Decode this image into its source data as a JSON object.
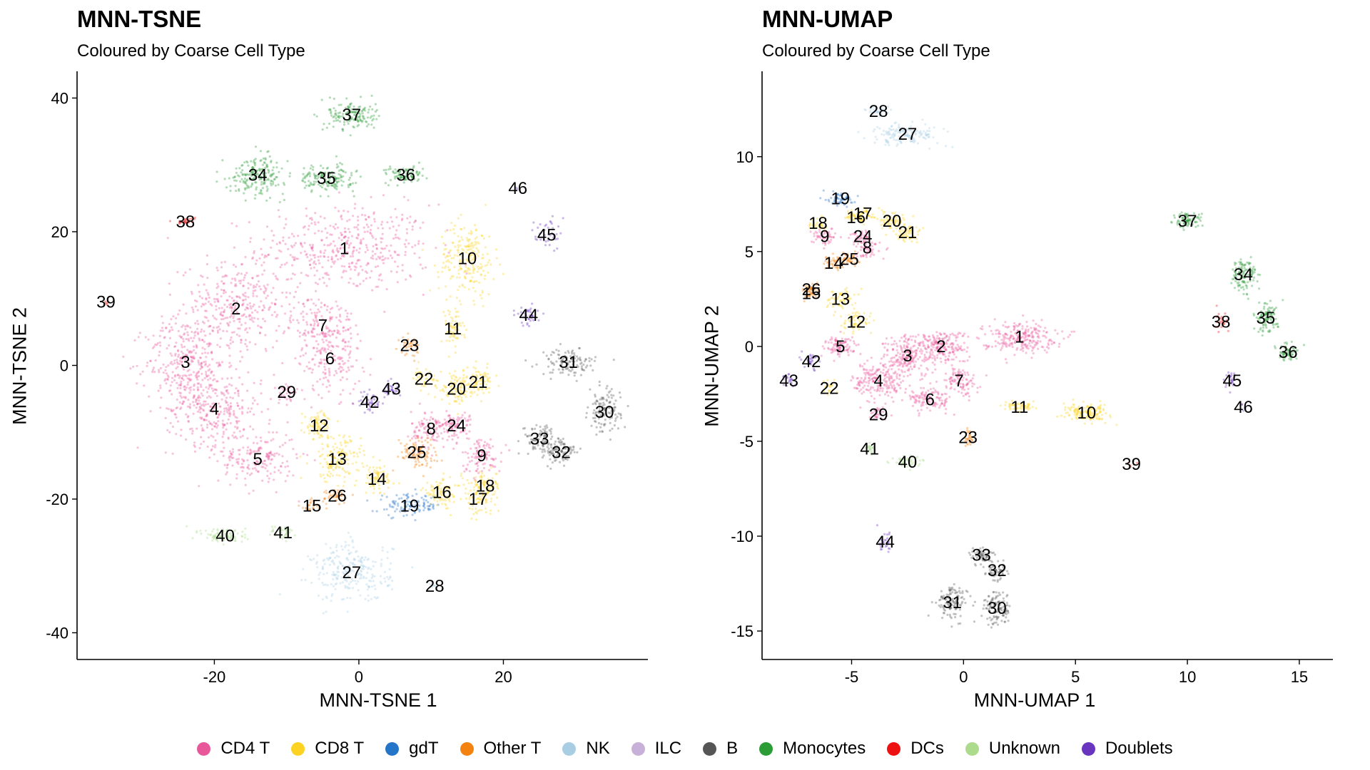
{
  "legend": [
    {
      "label": "CD4 T",
      "color": "#E7579A"
    },
    {
      "label": "CD8 T",
      "color": "#FDD323"
    },
    {
      "label": "gdT",
      "color": "#2474C8"
    },
    {
      "label": "Other T",
      "color": "#F3820E"
    },
    {
      "label": "NK",
      "color": "#A9CEE4"
    },
    {
      "label": "ILC",
      "color": "#C8B1D8"
    },
    {
      "label": "B",
      "color": "#555555"
    },
    {
      "label": "Monocytes",
      "color": "#2C9C37"
    },
    {
      "label": "DCs",
      "color": "#EE1111"
    },
    {
      "label": "Unknown",
      "color": "#ADDB8E"
    },
    {
      "label": "Doublets",
      "color": "#6A35BE"
    }
  ],
  "chart_data": [
    {
      "type": "scatter",
      "title": "MNN-TSNE",
      "subtitle": "Coloured by Coarse Cell Type",
      "xlabel": "MNN-TSNE 1",
      "ylabel": "MNN-TSNE 2",
      "xlim": [
        -39,
        40
      ],
      "ylim": [
        -44,
        44
      ],
      "xticks": [
        -20,
        0,
        20
      ],
      "yticks": [
        -40,
        -20,
        0,
        20,
        40
      ],
      "grid": false,
      "legend_position": "bottom",
      "clusters": [
        {
          "id": "1",
          "type": "CD4 T",
          "x": -2,
          "y": 17.5,
          "sx": 11,
          "sy": 6,
          "n": 450
        },
        {
          "id": "2",
          "type": "CD4 T",
          "x": -17,
          "y": 8.5,
          "sx": 7,
          "sy": 6,
          "n": 350
        },
        {
          "id": "3",
          "type": "CD4 T",
          "x": -24,
          "y": 0.5,
          "sx": 5,
          "sy": 6,
          "n": 300
        },
        {
          "id": "4",
          "type": "CD4 T",
          "x": -20,
          "y": -6.5,
          "sx": 6,
          "sy": 5,
          "n": 300
        },
        {
          "id": "5",
          "type": "CD4 T",
          "x": -14,
          "y": -14,
          "sx": 5,
          "sy": 4,
          "n": 180
        },
        {
          "id": "6",
          "type": "CD4 T",
          "x": -4,
          "y": 1,
          "sx": 4,
          "sy": 5,
          "n": 160
        },
        {
          "id": "7",
          "type": "CD4 T",
          "x": -5,
          "y": 6,
          "sx": 4,
          "sy": 4,
          "n": 140
        },
        {
          "id": "8",
          "type": "CD4 T",
          "x": 10,
          "y": -9.5,
          "sx": 2.5,
          "sy": 2.5,
          "n": 110
        },
        {
          "id": "9",
          "type": "CD4 T",
          "x": 17,
          "y": -13.5,
          "sx": 2.5,
          "sy": 2.5,
          "n": 100
        },
        {
          "id": "10",
          "type": "CD8 T",
          "x": 15,
          "y": 16,
          "sx": 3.5,
          "sy": 5,
          "n": 220
        },
        {
          "id": "11",
          "type": "CD8 T",
          "x": 13,
          "y": 5.5,
          "sx": 1.5,
          "sy": 3,
          "n": 70
        },
        {
          "id": "12",
          "type": "CD8 T",
          "x": -5.5,
          "y": -9,
          "sx": 2,
          "sy": 2,
          "n": 80
        },
        {
          "id": "13",
          "type": "CD8 T",
          "x": -3,
          "y": -14,
          "sx": 3,
          "sy": 3,
          "n": 150
        },
        {
          "id": "14",
          "type": "CD8 T",
          "x": 2.5,
          "y": -17,
          "sx": 2.5,
          "sy": 2,
          "n": 80
        },
        {
          "id": "15",
          "type": "Other T",
          "x": -6.5,
          "y": -21,
          "sx": 1.5,
          "sy": 1,
          "n": 25
        },
        {
          "id": "16",
          "type": "CD8 T",
          "x": 11.5,
          "y": -19,
          "sx": 2.5,
          "sy": 2,
          "n": 90
        },
        {
          "id": "17",
          "type": "CD8 T",
          "x": 16.5,
          "y": -20,
          "sx": 2,
          "sy": 2,
          "n": 70
        },
        {
          "id": "18",
          "type": "CD8 T",
          "x": 17.5,
          "y": -18,
          "sx": 2,
          "sy": 2,
          "n": 70
        },
        {
          "id": "19",
          "type": "gdT",
          "x": 7,
          "y": -21,
          "sx": 4,
          "sy": 1.5,
          "n": 110
        },
        {
          "id": "20",
          "type": "CD8 T",
          "x": 13.5,
          "y": -3.5,
          "sx": 2,
          "sy": 2,
          "n": 90
        },
        {
          "id": "21",
          "type": "CD8 T",
          "x": 16.5,
          "y": -2.5,
          "sx": 2,
          "sy": 2,
          "n": 90
        },
        {
          "id": "22",
          "type": "CD8 T",
          "x": 9,
          "y": -2,
          "sx": 1.5,
          "sy": 1.5,
          "n": 40
        },
        {
          "id": "23",
          "type": "Other T",
          "x": 7,
          "y": 3,
          "sx": 1.2,
          "sy": 1.2,
          "n": 40
        },
        {
          "id": "24",
          "type": "CD4 T",
          "x": 13.5,
          "y": -9,
          "sx": 2,
          "sy": 2,
          "n": 80
        },
        {
          "id": "25",
          "type": "Other T",
          "x": 8,
          "y": -13,
          "sx": 2.5,
          "sy": 2,
          "n": 100
        },
        {
          "id": "26",
          "type": "Other T",
          "x": -3,
          "y": -19.5,
          "sx": 1.5,
          "sy": 1,
          "n": 40
        },
        {
          "id": "27",
          "type": "NK",
          "x": -1,
          "y": -31,
          "sx": 5,
          "sy": 4,
          "n": 250
        },
        {
          "id": "28",
          "type": "NK",
          "x": 10.5,
          "y": -33,
          "sx": 0.8,
          "sy": 0.8,
          "n": 5
        },
        {
          "id": "29",
          "type": "CD4 T",
          "x": -10,
          "y": -4,
          "sx": 1.5,
          "sy": 1.5,
          "n": 30
        },
        {
          "id": "30",
          "type": "B",
          "x": 34,
          "y": -7,
          "sx": 2,
          "sy": 3,
          "n": 120
        },
        {
          "id": "31",
          "type": "B",
          "x": 29,
          "y": 0.5,
          "sx": 3.5,
          "sy": 1.8,
          "n": 120
        },
        {
          "id": "32",
          "type": "B",
          "x": 28,
          "y": -13,
          "sx": 2,
          "sy": 2,
          "n": 90
        },
        {
          "id": "33",
          "type": "B",
          "x": 25,
          "y": -11,
          "sx": 2,
          "sy": 2,
          "n": 90
        },
        {
          "id": "34",
          "type": "Monocytes",
          "x": -14,
          "y": 28.5,
          "sx": 3.5,
          "sy": 2.5,
          "n": 200
        },
        {
          "id": "35",
          "type": "Monocytes",
          "x": -4.5,
          "y": 28,
          "sx": 3.5,
          "sy": 1.8,
          "n": 160
        },
        {
          "id": "36",
          "type": "Monocytes",
          "x": 6.5,
          "y": 28.5,
          "sx": 2.5,
          "sy": 1.2,
          "n": 90
        },
        {
          "id": "37",
          "type": "Monocytes",
          "x": -1,
          "y": 37.5,
          "sx": 3,
          "sy": 2,
          "n": 150
        },
        {
          "id": "38",
          "type": "DCs",
          "x": -24,
          "y": 21.5,
          "sx": 1.2,
          "sy": 0.5,
          "n": 30
        },
        {
          "id": "39",
          "type": "DCs",
          "x": -35,
          "y": 9.5,
          "sx": 0.3,
          "sy": 0.3,
          "n": 5
        },
        {
          "id": "40",
          "type": "Unknown",
          "x": -18.5,
          "y": -25.5,
          "sx": 3,
          "sy": 1.2,
          "n": 80
        },
        {
          "id": "41",
          "type": "Unknown",
          "x": -10.5,
          "y": -25,
          "sx": 1.5,
          "sy": 1,
          "n": 40
        },
        {
          "id": "42",
          "type": "Doublets",
          "x": 1.5,
          "y": -5.5,
          "sx": 1.5,
          "sy": 1.5,
          "n": 40
        },
        {
          "id": "43",
          "type": "Doublets",
          "x": 4.5,
          "y": -3.5,
          "sx": 1.2,
          "sy": 1.2,
          "n": 30
        },
        {
          "id": "44",
          "type": "Doublets",
          "x": 23.5,
          "y": 7.5,
          "sx": 1.5,
          "sy": 1.5,
          "n": 40
        },
        {
          "id": "45",
          "type": "Doublets",
          "x": 26,
          "y": 19.5,
          "sx": 1.5,
          "sy": 2.5,
          "n": 40
        },
        {
          "id": "46",
          "type": "Doublets",
          "x": 22,
          "y": 26.5,
          "sx": 0.5,
          "sy": 0.5,
          "n": 3
        }
      ]
    },
    {
      "type": "scatter",
      "title": "MNN-UMAP",
      "subtitle": "Coloured by Coarse Cell Type",
      "xlabel": "MNN-UMAP 1",
      "ylabel": "MNN-UMAP 2",
      "xlim": [
        -9,
        16.5
      ],
      "ylim": [
        -16.5,
        14.5
      ],
      "xticks": [
        -5,
        0,
        5,
        10,
        15
      ],
      "yticks": [
        -15,
        -10,
        -5,
        0,
        5,
        10
      ],
      "grid": false,
      "legend_position": "bottom",
      "clusters": [
        {
          "id": "1",
          "type": "CD4 T",
          "x": 2.5,
          "y": 0.5,
          "sx": 1.5,
          "sy": 0.7,
          "n": 250
        },
        {
          "id": "2",
          "type": "CD4 T",
          "x": -1,
          "y": 0,
          "sx": 1,
          "sy": 0.8,
          "n": 200
        },
        {
          "id": "3",
          "type": "CD4 T",
          "x": -2.5,
          "y": -0.5,
          "sx": 1,
          "sy": 1,
          "n": 200
        },
        {
          "id": "4",
          "type": "CD4 T",
          "x": -3.8,
          "y": -1.8,
          "sx": 1,
          "sy": 1,
          "n": 200
        },
        {
          "id": "5",
          "type": "CD4 T",
          "x": -5.5,
          "y": 0,
          "sx": 0.7,
          "sy": 0.5,
          "n": 100
        },
        {
          "id": "6",
          "type": "CD4 T",
          "x": -1.5,
          "y": -2.8,
          "sx": 1,
          "sy": 0.6,
          "n": 120
        },
        {
          "id": "7",
          "type": "CD4 T",
          "x": -0.2,
          "y": -1.8,
          "sx": 0.7,
          "sy": 0.7,
          "n": 100
        },
        {
          "id": "8",
          "type": "CD4 T",
          "x": -4.3,
          "y": 5.2,
          "sx": 0.5,
          "sy": 0.5,
          "n": 60
        },
        {
          "id": "9",
          "type": "CD4 T",
          "x": -6.2,
          "y": 5.8,
          "sx": 0.5,
          "sy": 0.4,
          "n": 50
        },
        {
          "id": "10",
          "type": "CD8 T",
          "x": 5.5,
          "y": -3.5,
          "sx": 0.9,
          "sy": 0.4,
          "n": 150
        },
        {
          "id": "11",
          "type": "CD8 T",
          "x": 2.5,
          "y": -3.2,
          "sx": 0.7,
          "sy": 0.2,
          "n": 60
        },
        {
          "id": "12",
          "type": "CD8 T",
          "x": -4.8,
          "y": 1.3,
          "sx": 0.6,
          "sy": 0.6,
          "n": 60
        },
        {
          "id": "13",
          "type": "CD8 T",
          "x": -5.5,
          "y": 2.5,
          "sx": 0.6,
          "sy": 0.5,
          "n": 60
        },
        {
          "id": "14",
          "type": "Other T",
          "x": -5.8,
          "y": 4.4,
          "sx": 0.4,
          "sy": 0.4,
          "n": 40
        },
        {
          "id": "15",
          "type": "Other T",
          "x": -6.8,
          "y": 2.8,
          "sx": 0.3,
          "sy": 0.3,
          "n": 25
        },
        {
          "id": "16",
          "type": "CD8 T",
          "x": -4.8,
          "y": 6.8,
          "sx": 0.4,
          "sy": 0.3,
          "n": 40
        },
        {
          "id": "17",
          "type": "CD8 T",
          "x": -4.5,
          "y": 7,
          "sx": 0.5,
          "sy": 0.3,
          "n": 40
        },
        {
          "id": "18",
          "type": "CD8 T",
          "x": -6.5,
          "y": 6.5,
          "sx": 0.4,
          "sy": 0.3,
          "n": 30
        },
        {
          "id": "19",
          "type": "gdT",
          "x": -5.5,
          "y": 7.8,
          "sx": 0.5,
          "sy": 0.4,
          "n": 60
        },
        {
          "id": "20",
          "type": "CD8 T",
          "x": -3.2,
          "y": 6.6,
          "sx": 0.5,
          "sy": 0.4,
          "n": 60
        },
        {
          "id": "21",
          "type": "CD8 T",
          "x": -2.5,
          "y": 6,
          "sx": 0.5,
          "sy": 0.5,
          "n": 60
        },
        {
          "id": "22",
          "type": "CD8 T",
          "x": -6,
          "y": -2.2,
          "sx": 0.3,
          "sy": 0.3,
          "n": 20
        },
        {
          "id": "23",
          "type": "Other T",
          "x": 0.2,
          "y": -4.8,
          "sx": 0.2,
          "sy": 0.5,
          "n": 30
        },
        {
          "id": "24",
          "type": "CD4 T",
          "x": -4.5,
          "y": 5.8,
          "sx": 0.4,
          "sy": 0.3,
          "n": 40
        },
        {
          "id": "25",
          "type": "Other T",
          "x": -5.1,
          "y": 4.6,
          "sx": 0.4,
          "sy": 0.3,
          "n": 40
        },
        {
          "id": "26",
          "type": "Other T",
          "x": -6.8,
          "y": 3,
          "sx": 0.3,
          "sy": 0.3,
          "n": 25
        },
        {
          "id": "27",
          "type": "NK",
          "x": -2.5,
          "y": 11.2,
          "sx": 1.5,
          "sy": 0.5,
          "n": 150
        },
        {
          "id": "28",
          "type": "NK",
          "x": -3.8,
          "y": 12.4,
          "sx": 0.5,
          "sy": 0.3,
          "n": 30
        },
        {
          "id": "29",
          "type": "CD4 T",
          "x": -3.8,
          "y": -3.6,
          "sx": 0.4,
          "sy": 0.3,
          "n": 30
        },
        {
          "id": "30",
          "type": "B",
          "x": 1.5,
          "y": -13.8,
          "sx": 0.6,
          "sy": 0.8,
          "n": 120
        },
        {
          "id": "31",
          "type": "B",
          "x": -0.5,
          "y": -13.5,
          "sx": 0.6,
          "sy": 0.8,
          "n": 120
        },
        {
          "id": "32",
          "type": "B",
          "x": 1.5,
          "y": -11.8,
          "sx": 0.5,
          "sy": 0.5,
          "n": 60
        },
        {
          "id": "33",
          "type": "B",
          "x": 0.8,
          "y": -11,
          "sx": 0.5,
          "sy": 0.4,
          "n": 60
        },
        {
          "id": "34",
          "type": "Monocytes",
          "x": 12.5,
          "y": 3.8,
          "sx": 0.5,
          "sy": 0.8,
          "n": 120
        },
        {
          "id": "35",
          "type": "Monocytes",
          "x": 13.5,
          "y": 1.5,
          "sx": 0.5,
          "sy": 0.7,
          "n": 100
        },
        {
          "id": "36",
          "type": "Monocytes",
          "x": 14.5,
          "y": -0.3,
          "sx": 0.4,
          "sy": 0.4,
          "n": 60
        },
        {
          "id": "37",
          "type": "Monocytes",
          "x": 10,
          "y": 6.6,
          "sx": 0.6,
          "sy": 0.4,
          "n": 80
        },
        {
          "id": "38",
          "type": "DCs",
          "x": 11.5,
          "y": 1.3,
          "sx": 0.3,
          "sy": 0.4,
          "n": 25
        },
        {
          "id": "39",
          "type": "DCs",
          "x": 7.5,
          "y": -6.2,
          "sx": 0.15,
          "sy": 0.15,
          "n": 6
        },
        {
          "id": "40",
          "type": "Unknown",
          "x": -2.5,
          "y": -6.1,
          "sx": 0.6,
          "sy": 0.3,
          "n": 50
        },
        {
          "id": "41",
          "type": "Unknown",
          "x": -4.2,
          "y": -5.4,
          "sx": 0.3,
          "sy": 0.3,
          "n": 25
        },
        {
          "id": "42",
          "type": "Doublets",
          "x": -6.8,
          "y": -0.8,
          "sx": 0.3,
          "sy": 0.4,
          "n": 30
        },
        {
          "id": "43",
          "type": "Doublets",
          "x": -7.8,
          "y": -1.8,
          "sx": 0.3,
          "sy": 0.3,
          "n": 20
        },
        {
          "id": "44",
          "type": "Doublets",
          "x": -3.5,
          "y": -10.3,
          "sx": 0.3,
          "sy": 0.5,
          "n": 30
        },
        {
          "id": "45",
          "type": "Doublets",
          "x": 12,
          "y": -1.8,
          "sx": 0.3,
          "sy": 0.4,
          "n": 25
        },
        {
          "id": "46",
          "type": "Doublets",
          "x": 12.5,
          "y": -3.2,
          "sx": 0.2,
          "sy": 0.2,
          "n": 5
        }
      ]
    }
  ]
}
